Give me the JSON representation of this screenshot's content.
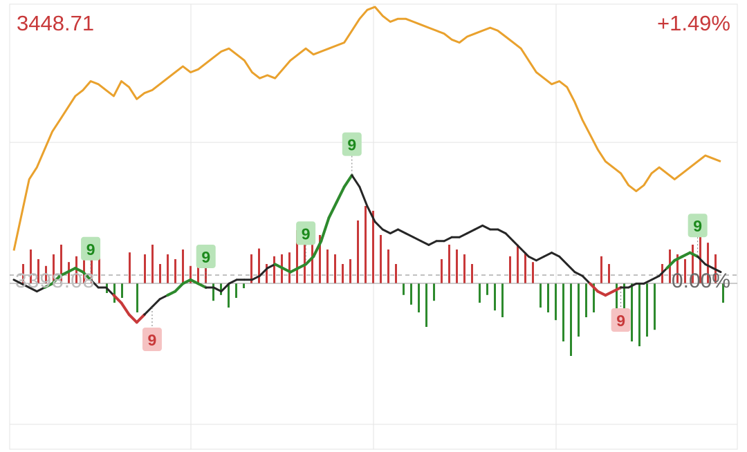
{
  "header": {
    "price_label": "3448.71",
    "change_label": "+1.49%",
    "left_axis_label": "3398.08",
    "right_axis_label": "0.00%"
  },
  "colors": {
    "price_line": "#e9a12d",
    "avg_line": "#262626",
    "up": "#c8393a",
    "down": "#2d8a2d",
    "grid": "#e3e3e3",
    "baseline": "#9a9a9a",
    "marker_green_bg": "#b9e4b9",
    "marker_red_bg": "#f5c2c2"
  },
  "chart_data": {
    "type": "line",
    "grid": true,
    "price_series": [
      0.18,
      0.3,
      0.42,
      0.46,
      0.52,
      0.58,
      0.62,
      0.66,
      0.7,
      0.72,
      0.75,
      0.74,
      0.72,
      0.7,
      0.75,
      0.73,
      0.69,
      0.71,
      0.72,
      0.74,
      0.76,
      0.78,
      0.8,
      0.78,
      0.79,
      0.81,
      0.83,
      0.85,
      0.86,
      0.84,
      0.82,
      0.78,
      0.76,
      0.77,
      0.76,
      0.79,
      0.82,
      0.84,
      0.86,
      0.84,
      0.85,
      0.86,
      0.87,
      0.88,
      0.92,
      0.96,
      0.99,
      1.0,
      0.97,
      0.95,
      0.96,
      0.96,
      0.95,
      0.94,
      0.93,
      0.92,
      0.91,
      0.89,
      0.88,
      0.9,
      0.91,
      0.92,
      0.93,
      0.92,
      0.9,
      0.88,
      0.86,
      0.82,
      0.78,
      0.76,
      0.74,
      0.75,
      0.73,
      0.68,
      0.62,
      0.57,
      0.52,
      0.48,
      0.46,
      0.44,
      0.4,
      0.38,
      0.4,
      0.44,
      0.46,
      0.44,
      0.42,
      0.44,
      0.46,
      0.48,
      0.5,
      0.49,
      0.48
    ],
    "avg_series": [
      0.42,
      0.41,
      0.4,
      0.39,
      0.4,
      0.41,
      0.43,
      0.44,
      0.45,
      0.44,
      0.42,
      0.4,
      0.4,
      0.38,
      0.36,
      0.33,
      0.31,
      0.33,
      0.35,
      0.37,
      0.38,
      0.39,
      0.41,
      0.42,
      0.41,
      0.4,
      0.4,
      0.39,
      0.41,
      0.42,
      0.42,
      0.42,
      0.43,
      0.45,
      0.46,
      0.45,
      0.44,
      0.45,
      0.46,
      0.48,
      0.52,
      0.58,
      0.62,
      0.66,
      0.69,
      0.66,
      0.61,
      0.57,
      0.55,
      0.54,
      0.55,
      0.54,
      0.53,
      0.52,
      0.51,
      0.52,
      0.52,
      0.53,
      0.53,
      0.54,
      0.55,
      0.56,
      0.55,
      0.55,
      0.54,
      0.52,
      0.5,
      0.48,
      0.47,
      0.48,
      0.49,
      0.48,
      0.46,
      0.44,
      0.43,
      0.41,
      0.39,
      0.38,
      0.39,
      0.4,
      0.4,
      0.41,
      0.41,
      0.42,
      0.43,
      0.45,
      0.47,
      0.48,
      0.49,
      0.48,
      0.46,
      0.45,
      0.44
    ],
    "volume_bars": [
      0.2,
      0.35,
      0.25,
      0.18,
      0.3,
      0.4,
      0.22,
      0.28,
      0.38,
      0.46,
      0.3,
      -0.1,
      -0.2,
      -0.15,
      0.32,
      -0.3,
      0.3,
      0.4,
      0.2,
      0.3,
      0.25,
      0.35,
      0.18,
      0.22,
      0.4,
      -0.18,
      -0.12,
      -0.25,
      -0.15,
      -0.05,
      0.3,
      0.36,
      0.2,
      0.28,
      0.3,
      0.32,
      0.55,
      0.6,
      0.4,
      0.5,
      0.35,
      0.3,
      0.2,
      0.25,
      0.65,
      0.8,
      0.75,
      0.5,
      0.35,
      0.2,
      -0.12,
      -0.22,
      -0.3,
      -0.45,
      -0.18,
      0.25,
      0.4,
      0.35,
      0.3,
      0.2,
      -0.2,
      -0.12,
      -0.28,
      -0.35,
      0.28,
      0.4,
      0.32,
      0.22,
      -0.25,
      -0.3,
      -0.38,
      -0.6,
      -0.75,
      -0.55,
      -0.35,
      -0.3,
      0.28,
      0.2,
      -0.3,
      -0.5,
      -0.6,
      -0.65,
      -0.55,
      -0.48,
      0.2,
      0.35,
      0.3,
      0.25,
      0.4,
      0.55,
      0.42,
      0.3,
      -0.2
    ],
    "markers": [
      {
        "label": "9",
        "kind": "green",
        "index": 10
      },
      {
        "label": "9",
        "kind": "red",
        "index": 18
      },
      {
        "label": "9",
        "kind": "green",
        "index": 25
      },
      {
        "label": "9",
        "kind": "green",
        "index": 38
      },
      {
        "label": "9",
        "kind": "green",
        "index": 44
      },
      {
        "label": "9",
        "kind": "red",
        "index": 79
      },
      {
        "label": "9",
        "kind": "green",
        "index": 89
      }
    ]
  }
}
